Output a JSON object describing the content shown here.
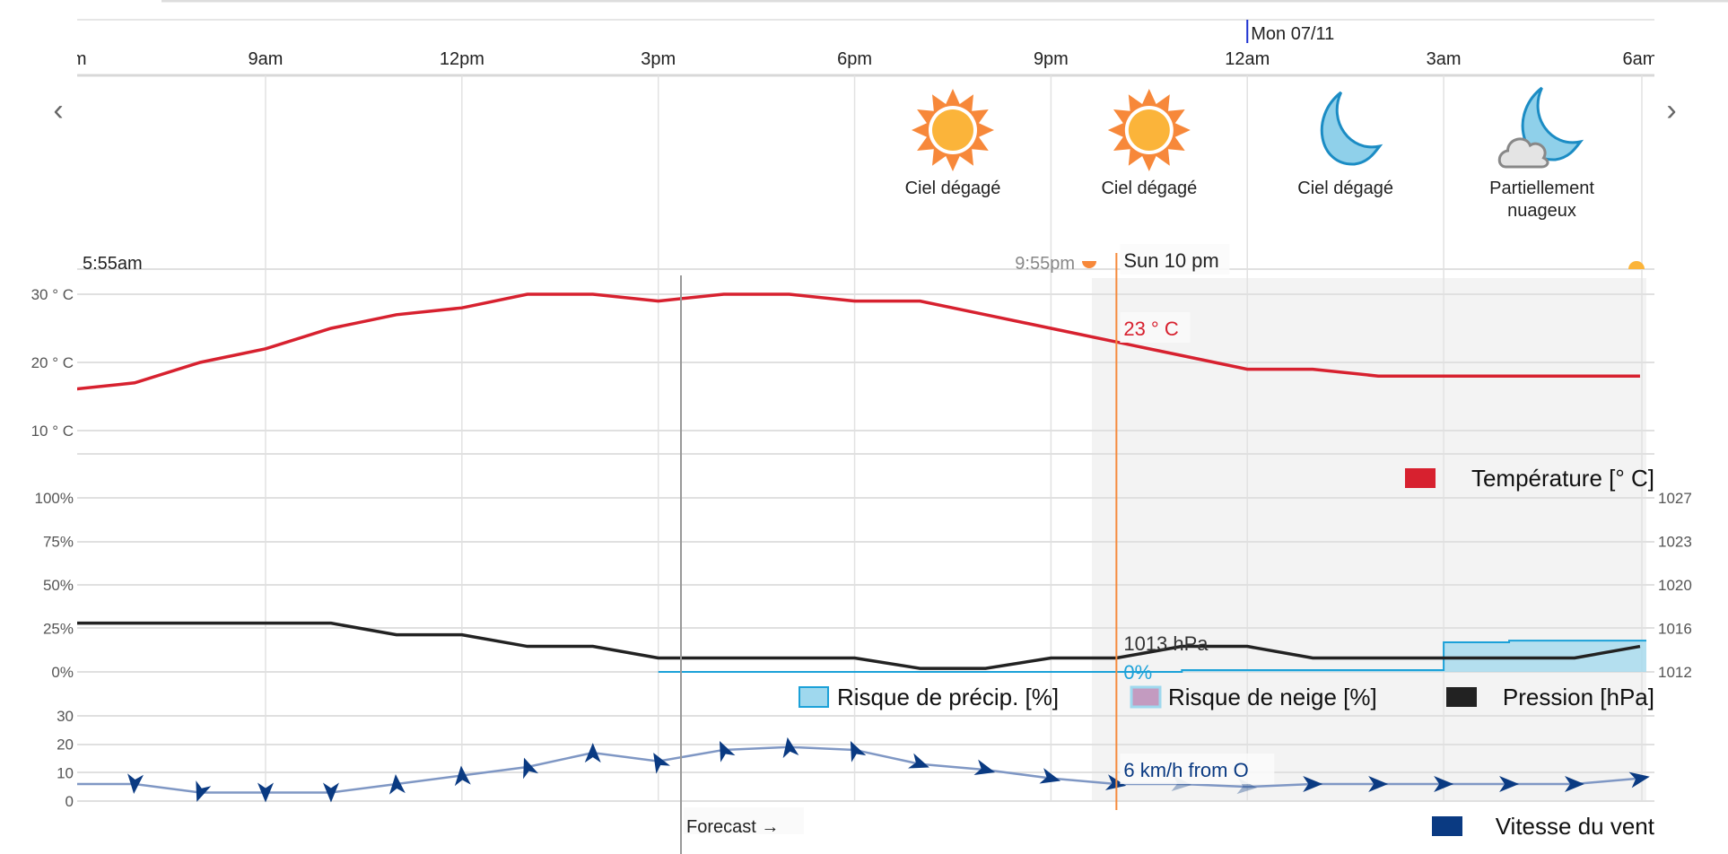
{
  "header": {
    "date_marker": "Mon 07/11",
    "time_labels": [
      {
        "hour": 6,
        "label": "6am"
      },
      {
        "hour": 9,
        "label": "9am"
      },
      {
        "hour": 12,
        "label": "12pm"
      },
      {
        "hour": 15,
        "label": "3pm"
      },
      {
        "hour": 18,
        "label": "6pm"
      },
      {
        "hour": 21,
        "label": "9pm"
      },
      {
        "hour": 24,
        "label": "12am"
      },
      {
        "hour": 27,
        "label": "3am"
      },
      {
        "hour": 30,
        "label": "6am"
      }
    ],
    "prev_icon": "chevron-left-icon",
    "next_icon": "chevron-right-icon"
  },
  "conditions": [
    {
      "hour": 19.5,
      "icon": "sun",
      "lines": [
        "Ciel dégagé"
      ]
    },
    {
      "hour": 22.5,
      "icon": "sun",
      "lines": [
        "Ciel dégagé"
      ]
    },
    {
      "hour": 25.5,
      "icon": "moon",
      "lines": [
        "Ciel dégagé"
      ]
    },
    {
      "hour": 28.5,
      "icon": "moon-cloud",
      "lines": [
        "Partiellement",
        "nuageux"
      ]
    }
  ],
  "sun": {
    "sunrise": "5:55am",
    "sunset": "9:55pm"
  },
  "cursor": {
    "label": "Sun 10 pm",
    "hour": 22,
    "temp_label": "23 ° C",
    "pressure_label": "1013 hPa",
    "precip_label": "0%",
    "wind_label": "6 km/h from O"
  },
  "forecast_label": "Forecast →",
  "colors": {
    "temp": "#d7212f",
    "precip": "#9fd8ee",
    "precip_line": "#1ba1d8",
    "snow": "#c39bc0",
    "pressure": "#222222",
    "wind": "#0a3a82",
    "cursor": "#f58a3c",
    "night": "#f3f3f3"
  },
  "chart_data": [
    {
      "type": "line",
      "title": "Température [° C]",
      "legend": "Température [° C]",
      "x_hours": [
        6,
        7,
        8,
        9,
        10,
        11,
        12,
        13,
        14,
        15,
        16,
        17,
        18,
        19,
        20,
        21,
        22,
        23,
        24,
        25,
        26,
        27,
        28,
        29,
        30
      ],
      "values": [
        16,
        17,
        20,
        22,
        25,
        27,
        28,
        30,
        30,
        29,
        30,
        30,
        29,
        29,
        27,
        25,
        23,
        21,
        19,
        19,
        18,
        18,
        18,
        18,
        18
      ],
      "yticks": [
        "30 ° C",
        "20 ° C",
        "10 ° C"
      ],
      "ylim": [
        10,
        30
      ]
    },
    {
      "type": "area",
      "legend": [
        "Risque de précip. [%]",
        "Risque de neige [%]",
        "Pression [hPa]"
      ],
      "precip_hours": [
        15,
        16,
        17,
        18,
        19,
        20,
        21,
        22,
        23,
        24,
        25,
        26,
        27,
        28,
        29,
        30
      ],
      "precip_values": [
        0,
        0,
        0,
        0,
        0,
        0,
        0,
        0,
        1,
        1,
        1,
        1,
        17,
        18,
        18,
        18
      ],
      "pressure_values": [
        1016.2,
        1016.2,
        1016.2,
        1016.2,
        1016.2,
        1015.2,
        1015.2,
        1014.2,
        1014.2,
        1013.2,
        1013.2,
        1013.2,
        1013.2,
        1012.3,
        1012.3,
        1013.2,
        1013.2,
        1014.2,
        1014.2,
        1013.2,
        1013.2,
        1013.2,
        1013.2,
        1013.2,
        1014.2
      ],
      "yticks_left": [
        "100%",
        "75%",
        "50%",
        "25%",
        "0%"
      ],
      "yticks_right": [
        "1027",
        "1023",
        "1020",
        "1016",
        "1012"
      ],
      "ylim_left": [
        0,
        100
      ],
      "ylim_right": [
        1012,
        1027
      ]
    },
    {
      "type": "line",
      "legend": "Vitesse du vent",
      "values": [
        6,
        6,
        3,
        3,
        3,
        6,
        9,
        12,
        17,
        14,
        18,
        19,
        18,
        13,
        11,
        8,
        6,
        6,
        5,
        6,
        6,
        6,
        6,
        6,
        8
      ],
      "direction_deg": [
        95,
        95,
        110,
        90,
        90,
        -95,
        -95,
        -110,
        -90,
        -120,
        -115,
        -100,
        -115,
        20,
        15,
        15,
        10,
        5,
        5,
        0,
        0,
        0,
        0,
        0,
        -10
      ],
      "yticks": [
        "30",
        "20",
        "10",
        "0"
      ],
      "ylim": [
        0,
        30
      ]
    }
  ]
}
